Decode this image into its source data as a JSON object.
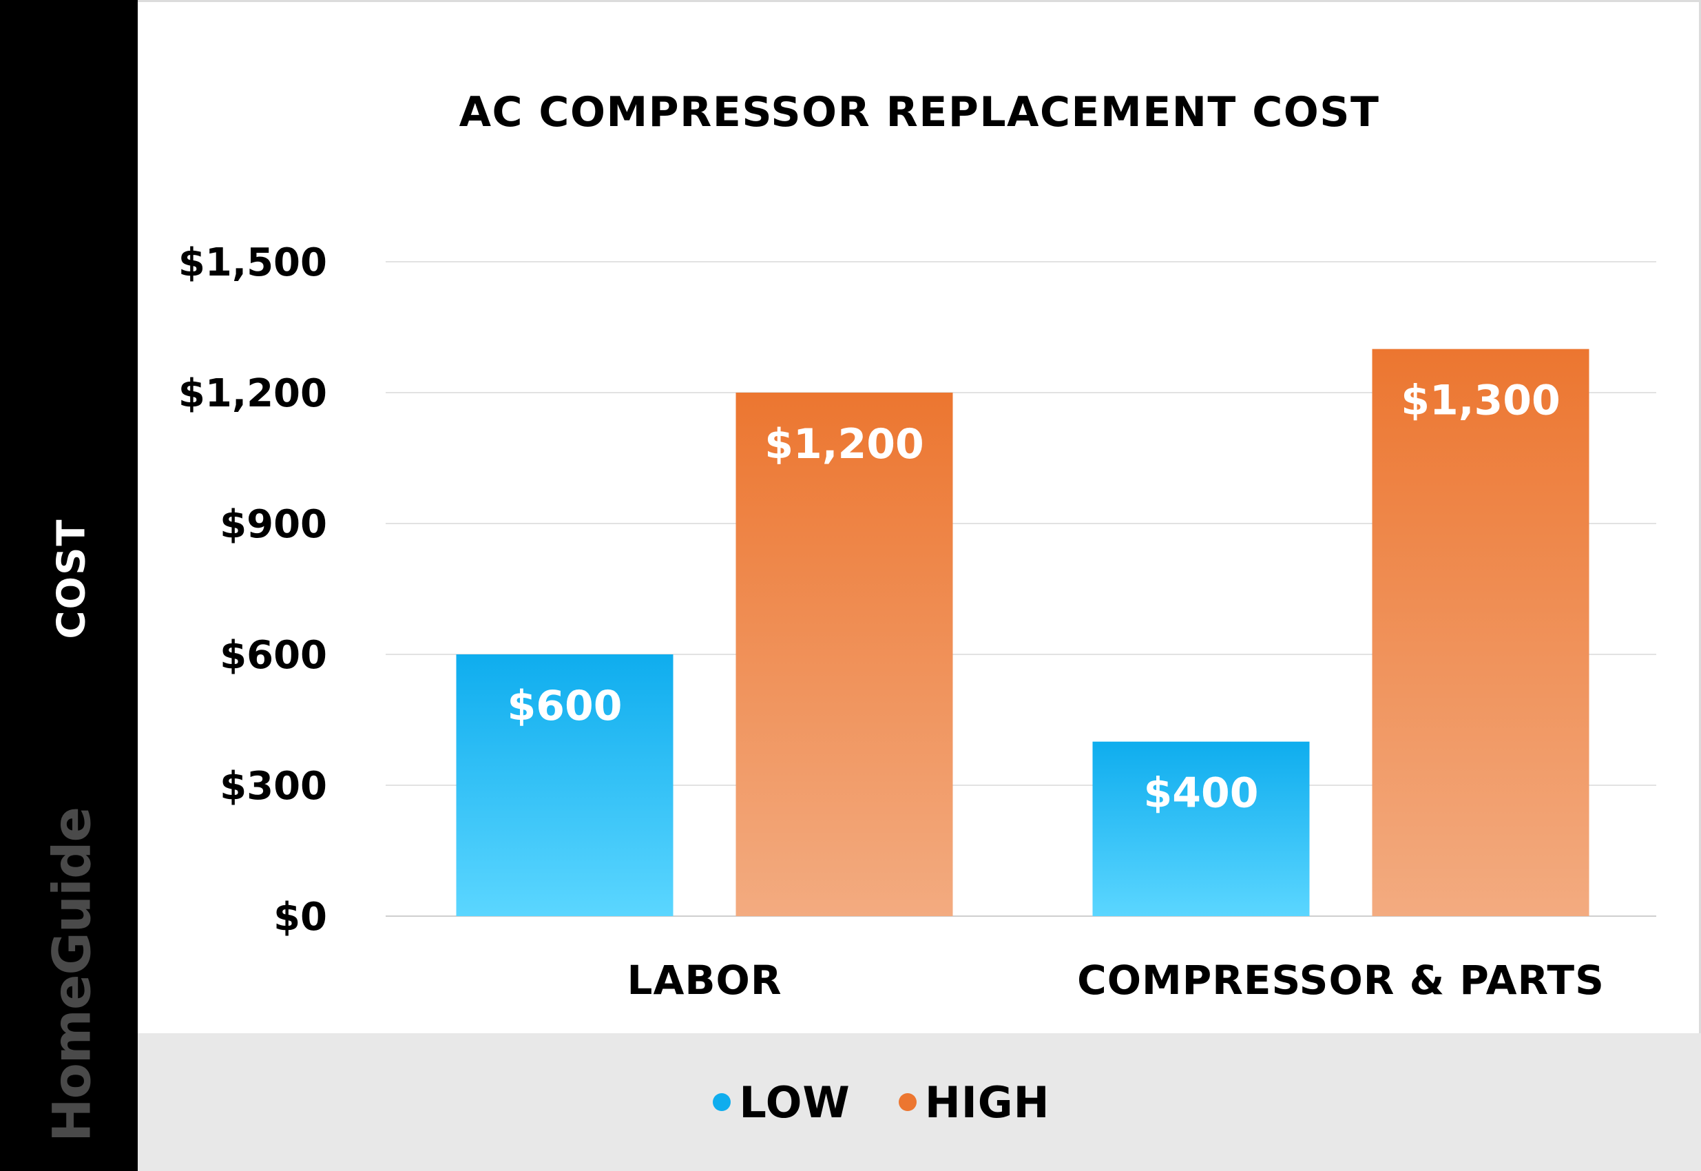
{
  "brand": {
    "name": "HomeGuide"
  },
  "chart_data": {
    "type": "bar",
    "title": "AC COMPRESSOR REPLACEMENT COST",
    "ylabel": "COST",
    "xlabel": "",
    "categories": [
      "LABOR",
      "COMPRESSOR & PARTS"
    ],
    "series": [
      {
        "name": "LOW",
        "values": [
          600,
          400
        ],
        "labels": [
          "$600",
          "$400"
        ],
        "color_top": "#0fadee",
        "color_bottom": "#5bd6ff"
      },
      {
        "name": "HIGH",
        "values": [
          1200,
          1300
        ],
        "labels": [
          "$1,200",
          "$1,300"
        ],
        "color_top": "#ec7630",
        "color_bottom": "#f3ab80"
      }
    ],
    "ylim": [
      0,
      1500
    ],
    "yticks": [
      0,
      300,
      600,
      900,
      1200,
      1500
    ],
    "ytick_labels": [
      "$0",
      "$300",
      "$600",
      "$900",
      "$1,200",
      "$1,500"
    ],
    "grid": true,
    "legend_position": "bottom"
  },
  "legend": {
    "items": [
      {
        "label": "LOW",
        "color": "#0fadee"
      },
      {
        "label": "HIGH",
        "color": "#ec7630"
      }
    ]
  }
}
